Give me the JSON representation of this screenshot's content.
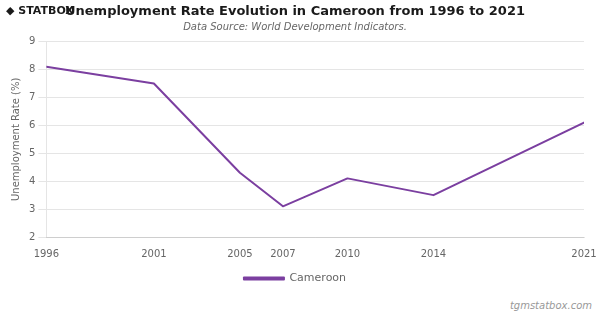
{
  "chart_data": {
    "type": "line",
    "title": "Unemployment Rate Evolution in Cameroon from 1996 to 2021",
    "subtitle": "Data Source: World Development Indicators.",
    "ylabel": "Unemployment Rate (%)",
    "annotations": [
      "◆ STATBOX",
      "tgmstatbox.com"
    ],
    "x": [
      1996,
      2001,
      2005,
      2007,
      2010,
      2014,
      2021
    ],
    "series": [
      {
        "name": "Cameroon",
        "color": "#7B3FA0",
        "values": [
          8.1,
          7.5,
          4.3,
          3.1,
          4.1,
          3.5,
          6.1
        ]
      }
    ],
    "xlim": [
      1996,
      2021
    ],
    "xticks": [
      1996,
      2001,
      2005,
      2007,
      2010,
      2014,
      2021
    ],
    "ylim": [
      2,
      9
    ],
    "yticks": [
      2,
      3,
      4,
      5,
      6,
      7,
      8,
      9
    ],
    "grid": "y",
    "legend": "bottom"
  }
}
